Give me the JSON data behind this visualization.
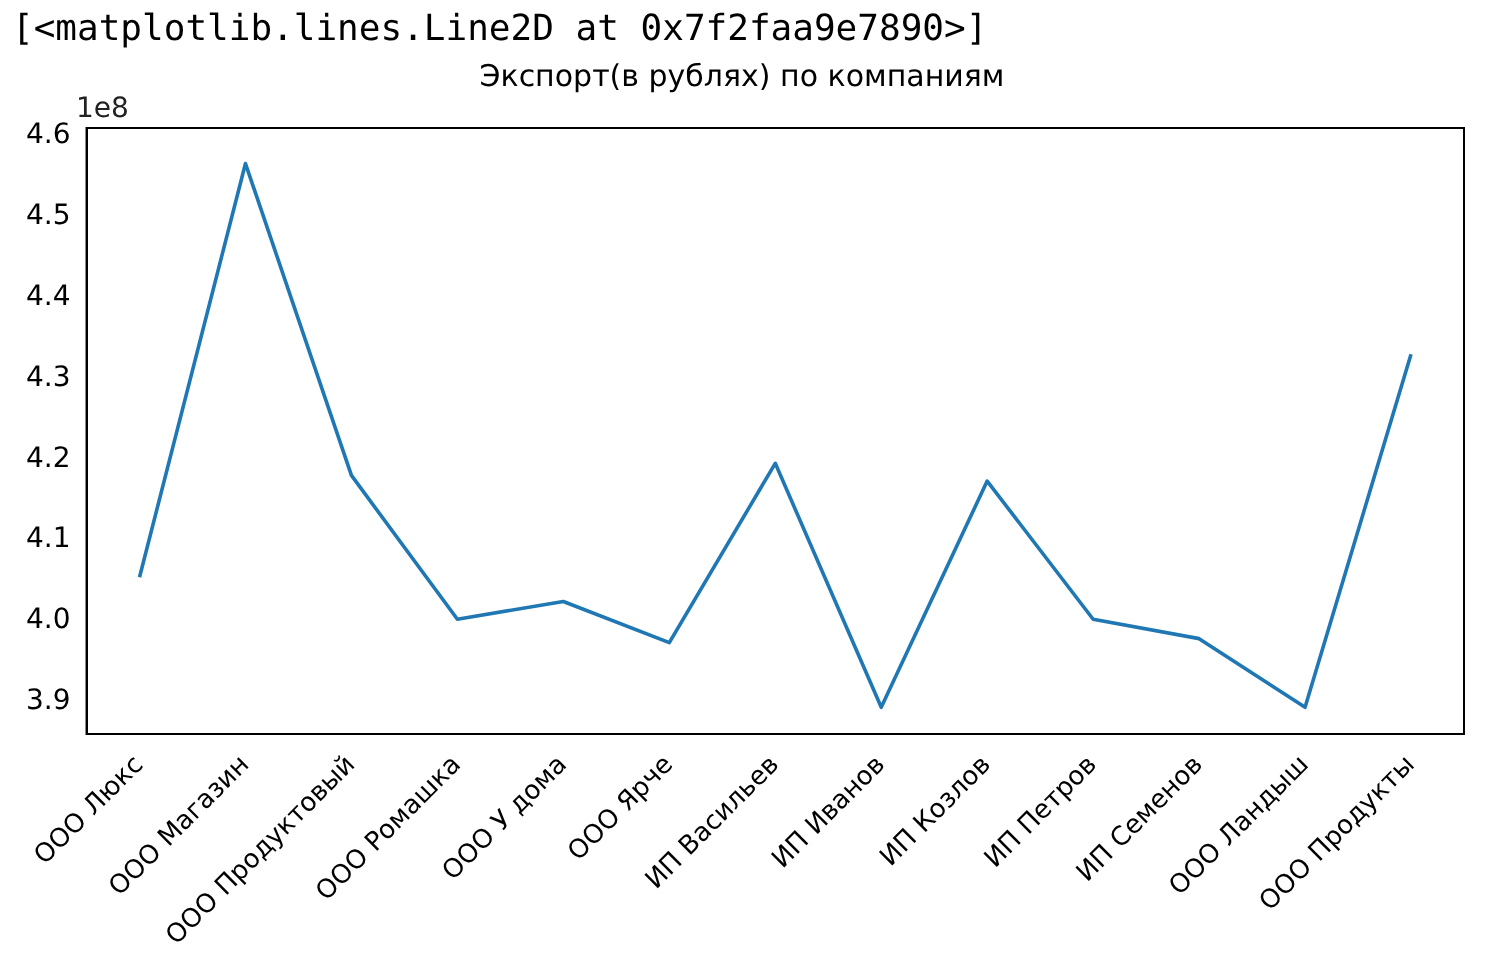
{
  "chart_data": {
    "type": "line",
    "title": "Экспорт(в рублях) по компаниям",
    "annotations": [
      "[<matplotlib.lines.Line2D at 0x7f2faa9e7890>]",
      "1e8"
    ],
    "categories": [
      "ООО Люкс",
      "ООО Магазин",
      "ООО Продуктовый",
      "ООО Ромашка",
      "ООО У дома",
      "ООО Ярче",
      "ИП Васильев",
      "ИП Иванов",
      "ИП Козлов",
      "ИП Петров",
      "ИП Семенов",
      "ООО Ландыш",
      "ООО Продукты"
    ],
    "series": [
      {
        "color": "#1f77b4",
        "values": [
          4.054,
          4.566,
          4.18,
          4.002,
          4.024,
          3.973,
          4.195,
          3.893,
          4.173,
          4.002,
          3.978,
          3.893,
          4.33
        ]
      }
    ],
    "ylim": [
      3.86,
      4.61
    ],
    "yticks": [
      3.9,
      {
        "value": 4.0,
        "label": "4.0"
      },
      4.1,
      4.2,
      4.3,
      4.4,
      4.5,
      4.6
    ],
    "grid": false,
    "legend": false,
    "marker": "none"
  }
}
